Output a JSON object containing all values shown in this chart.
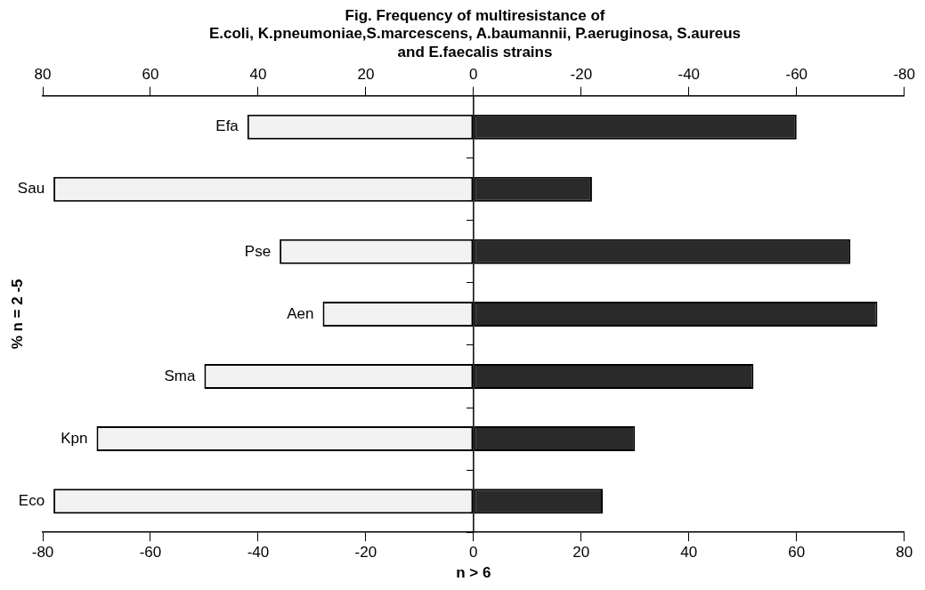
{
  "chart_data": {
    "type": "bar",
    "orientation": "horizontal",
    "stacked": true,
    "title": "Fig. Frequency of multiresistance of\nE.coli, K.pneumoniae,S.marcescens, A.baumannii, P.aeruginosa, S.aureus\nand E.faecalis strains",
    "ylabel": "% n = 2 -5",
    "xlabel": "n > 6",
    "categories": [
      "Efa",
      "Sau",
      "Pse",
      "Aen",
      "Sma",
      "Kpn",
      "Eco"
    ],
    "series": [
      {
        "color": "#f2f2f2",
        "values": [
          -42,
          -78,
          -36,
          -28,
          -50,
          -70,
          -78
        ]
      },
      {
        "color": "#2a2a2a",
        "values": [
          60,
          22,
          70,
          75,
          52,
          30,
          24
        ]
      }
    ],
    "xlim": [
      -80,
      80
    ],
    "xticks": [
      -80,
      -60,
      -40,
      -20,
      0,
      20,
      40,
      60,
      80
    ],
    "x2lim": [
      80,
      -80
    ],
    "x2ticks": [
      80,
      60,
      40,
      20,
      0,
      -20,
      -40,
      -60,
      -80
    ],
    "ref_lines": [
      {
        "axis": "x",
        "value": 0,
        "color": "#000000"
      }
    ],
    "grid": false,
    "legend": false
  }
}
